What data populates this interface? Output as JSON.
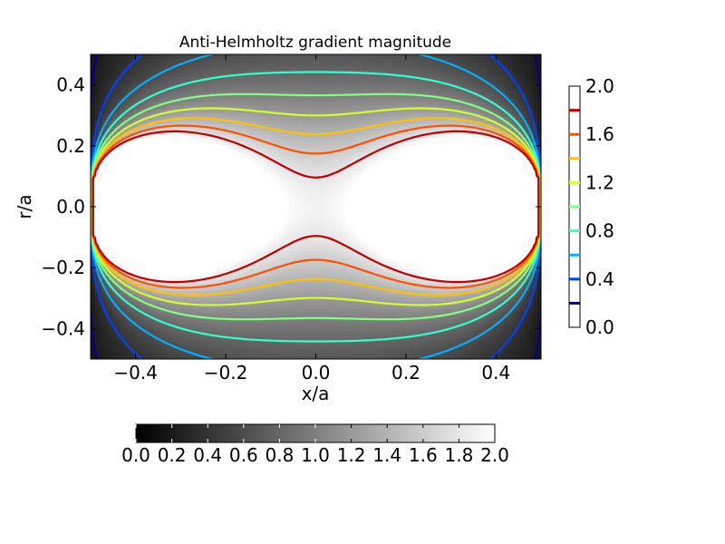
{
  "chart_data": {
    "type": "heatmap",
    "title": "Anti-Helmholtz gradient magnitude",
    "xlabel": "x/a",
    "ylabel": "r/a",
    "xlim": [
      -0.5,
      0.5
    ],
    "ylim": [
      -0.5,
      0.5
    ],
    "x_ticks": [
      -0.4,
      -0.2,
      0.0,
      0.2,
      0.4
    ],
    "x_tick_labels": [
      "−0.4",
      "−0.2",
      "0.0",
      "0.2",
      "0.4"
    ],
    "y_ticks": [
      -0.4,
      -0.2,
      0.0,
      0.2,
      0.4
    ],
    "y_tick_labels": [
      "−0.4",
      "−0.2",
      "0.0",
      "0.2",
      "0.4"
    ],
    "colormap": "gray",
    "value_range": [
      0.0,
      2.0
    ],
    "grid": false,
    "contour_levels": [
      0.2,
      0.4,
      0.6,
      0.8,
      1.0,
      1.2,
      1.4,
      1.6,
      1.8
    ],
    "contour_colors": [
      "#00008f",
      "#0040ff",
      "#00b0ff",
      "#30ffd0",
      "#80ff80",
      "#d0ff30",
      "#ffc000",
      "#ff5000",
      "#c00000"
    ],
    "contour_colorbar": {
      "placement": "right",
      "ticks": [
        0.0,
        0.4,
        0.8,
        1.2,
        1.6,
        2.0
      ],
      "tick_labels": [
        "0.0",
        "0.4",
        "0.8",
        "1.2",
        "1.6",
        "2.0"
      ]
    },
    "image_colorbar": {
      "placement": "bottom",
      "ticks": [
        0.0,
        0.2,
        0.4,
        0.6,
        0.8,
        1.0,
        1.2,
        1.4,
        1.6,
        1.8,
        2.0
      ],
      "tick_labels": [
        "0.0",
        "0.2",
        "0.4",
        "0.6",
        "0.8",
        "1.0",
        "1.2",
        "1.4",
        "1.6",
        "1.8",
        "2.0"
      ]
    },
    "field": {
      "description_of_model": "gradient magnitude of an anti-Helmholtz coil pair: ~0 on the x=0 plane, ~0 near the coils at x=±0.5, r=0, maximum (~1.4–1.5) near x≈±0.25",
      "coil_x": 0.5
    }
  }
}
